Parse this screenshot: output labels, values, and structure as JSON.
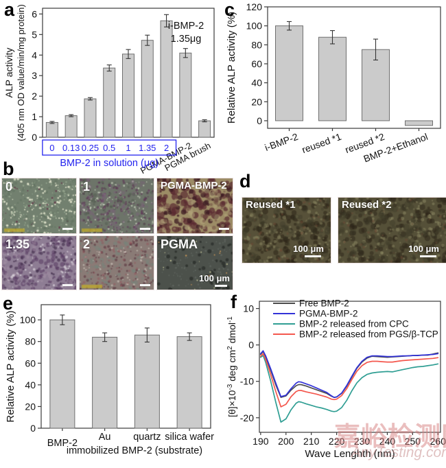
{
  "figure": {
    "labels": {
      "a": "a",
      "b": "b",
      "c": "c",
      "d": "d",
      "e": "e",
      "f": "f"
    }
  },
  "chart_data": [
    {
      "panel": "a",
      "type": "bar",
      "ylabel_lines": [
        "ALP activity",
        "(405 nm OD value/min/mg protein)"
      ],
      "ylim": [
        0,
        6.28
      ],
      "yticks": [
        0,
        1,
        2,
        3,
        4,
        5,
        6
      ],
      "categories": [
        "0",
        "0.13",
        "0.25",
        "0.5",
        "1",
        "1.35",
        "2",
        "PGMA-BMP-2",
        "PGMA brush"
      ],
      "values": [
        0.72,
        1.05,
        1.87,
        3.37,
        4.05,
        4.72,
        5.67,
        4.1,
        0.8
      ],
      "errors": [
        0.05,
        0.05,
        0.06,
        0.15,
        0.22,
        0.25,
        0.3,
        0.22,
        0.05
      ],
      "group_box": {
        "label": "BMP-2 in solution (μg)",
        "first_n": 7,
        "color": "#2323ee"
      },
      "annotation_lines": [
        "i-BMP-2",
        "1.35μg"
      ],
      "bar_fill": "#cbcbcb",
      "bar_stroke": "#6f6f6f"
    },
    {
      "panel": "c",
      "type": "bar",
      "ylabel_lines": [
        "Relative ALP activity (%)"
      ],
      "ylim": [
        -8,
        120
      ],
      "yticks": [
        0,
        20,
        40,
        60,
        80,
        100,
        120
      ],
      "categories": [
        "i-BMP-2",
        "reused *1",
        "reused *2",
        "BMP-2+Ethanol"
      ],
      "values": [
        100,
        88,
        75,
        -5
      ],
      "errors": [
        4.5,
        7,
        11,
        0
      ],
      "bar_fill": "#cbcbcb",
      "bar_stroke": "#6f6f6f"
    },
    {
      "panel": "e",
      "type": "bar",
      "ylabel_lines": [
        "Relative ALP activity (%)"
      ],
      "ylim": [
        0,
        114
      ],
      "yticks": [
        0,
        20,
        40,
        60,
        80,
        100
      ],
      "categories": [
        "BMP-2",
        "Au",
        "quartz",
        "silica wafer"
      ],
      "xlabel2": "immobilized BMP-2 (substrate)",
      "values": [
        100,
        84,
        86,
        84.5
      ],
      "errors": [
        4.5,
        4,
        6.5,
        3.5
      ],
      "bar_fill": "#cbcbcb",
      "bar_stroke": "#6f6f6f"
    },
    {
      "panel": "f",
      "type": "line",
      "xlabel": "Wave Lenghth (nm)",
      "ylabel_segments": [
        {
          "t": "[θ]×10"
        },
        {
          "t": "-3",
          "sup": true
        },
        {
          "t": " deg cm"
        },
        {
          "t": "2",
          "sup": true
        },
        {
          "t": " dmol"
        },
        {
          "t": "-1",
          "sup": true
        }
      ],
      "xlim": [
        189.5,
        261
      ],
      "ylim": [
        -24,
        12
      ],
      "xticks": [
        190,
        200,
        210,
        220,
        230,
        240,
        250,
        260
      ],
      "yticks": [
        10,
        0,
        -10,
        -20
      ],
      "legend_position": "top-inside",
      "x": [
        190,
        191,
        192,
        193,
        194,
        196,
        198,
        200,
        202,
        204,
        205,
        206,
        208,
        210,
        212,
        214,
        216,
        218,
        219,
        220,
        222,
        224,
        226,
        228,
        230,
        232,
        234,
        236,
        238,
        240,
        242,
        244,
        246,
        248,
        250,
        252,
        254,
        256,
        258,
        260
      ],
      "series": [
        {
          "name": "Free BMP-2",
          "color": "#4d4d4d",
          "values": [
            -2.6,
            -1.8,
            -3.2,
            -5.1,
            -7.0,
            -11.0,
            -14.4,
            -14.0,
            -12.4,
            -11.2,
            -10.9,
            -10.9,
            -11.3,
            -11.8,
            -12.3,
            -12.8,
            -13.3,
            -14.1,
            -14.4,
            -14.3,
            -13.3,
            -11.3,
            -8.8,
            -6.4,
            -4.7,
            -3.6,
            -3.1,
            -3.2,
            -3.3,
            -3.4,
            -3.3,
            -3.2,
            -3.1,
            -3.0,
            -2.9,
            -2.85,
            -2.8,
            -2.8,
            -2.5,
            -2.2
          ]
        },
        {
          "name": "PGMA-BMP-2",
          "color": "#3232d8",
          "values": [
            -2.4,
            -1.6,
            -3.0,
            -4.8,
            -6.6,
            -10.5,
            -14.2,
            -13.8,
            -12.0,
            -10.5,
            -10.1,
            -10.2,
            -10.7,
            -11.2,
            -11.8,
            -12.4,
            -13.0,
            -14.0,
            -14.4,
            -14.3,
            -13.2,
            -11.1,
            -8.6,
            -6.2,
            -4.5,
            -3.4,
            -3.0,
            -3.0,
            -3.1,
            -3.2,
            -3.2,
            -3.1,
            -3.0,
            -3.0,
            -2.9,
            -2.9,
            -2.8,
            -2.7,
            -2.6,
            -2.4
          ]
        },
        {
          "name": "BMP-2 released from CPC",
          "color": "#2f9e93",
          "values": [
            -3.4,
            -2.9,
            -4.8,
            -7.4,
            -10.0,
            -15.8,
            -21.2,
            -20.3,
            -17.8,
            -16.0,
            -15.6,
            -15.7,
            -16.2,
            -16.6,
            -17.0,
            -17.3,
            -17.7,
            -18.2,
            -18.3,
            -18.2,
            -17.2,
            -15.2,
            -12.6,
            -10.4,
            -9.0,
            -8.1,
            -7.7,
            -7.5,
            -7.4,
            -7.3,
            -7.4,
            -7.1,
            -6.8,
            -6.5,
            -6.2,
            -6.0,
            -5.9,
            -5.7,
            -5.5,
            -5.2
          ]
        },
        {
          "name": "BMP-2 released from PGS/β-TCP",
          "color": "#f4574d",
          "values": [
            -3.1,
            -2.4,
            -4.0,
            -6.0,
            -8.2,
            -12.8,
            -17.0,
            -16.3,
            -14.2,
            -12.8,
            -12.5,
            -12.5,
            -12.9,
            -13.2,
            -13.5,
            -13.9,
            -14.3,
            -14.9,
            -15.0,
            -14.9,
            -13.9,
            -12.0,
            -9.5,
            -7.2,
            -5.7,
            -4.8,
            -4.5,
            -4.5,
            -4.6,
            -4.7,
            -4.7,
            -4.5,
            -4.3,
            -4.2,
            -4.1,
            -4.0,
            -3.9,
            -3.8,
            -3.7,
            -3.5
          ]
        }
      ]
    }
  ],
  "micrographs": {
    "b": {
      "scale_text": "100 μm",
      "tiles": [
        {
          "label": "0",
          "base": "#72806f",
          "meta": true,
          "speckles": [
            {
              "color": "#e9ead2",
              "count": 150,
              "rmin": 0.7,
              "rmax": 1.8,
              "alpha": 0.85
            },
            {
              "color": "#aebfa4",
              "count": 200,
              "rmin": 0.6,
              "rmax": 1.4,
              "alpha": 0.5
            },
            {
              "color": "#64344a",
              "count": 28,
              "rmin": 0.7,
              "rmax": 1.6,
              "alpha": 0.8
            },
            {
              "color": "#5a6a58",
              "count": 120,
              "rmin": 1.0,
              "rmax": 2.4,
              "alpha": 0.35
            }
          ]
        },
        {
          "label": "1",
          "base": "#6d7469",
          "meta": true,
          "speckles": [
            {
              "color": "#cdd6c2",
              "count": 150,
              "rmin": 0.6,
              "rmax": 1.5,
              "alpha": 0.7
            },
            {
              "color": "#5d3355",
              "count": 180,
              "rmin": 0.8,
              "rmax": 2.0,
              "alpha": 0.6
            },
            {
              "color": "#7c5c7a",
              "count": 90,
              "rmin": 1.5,
              "rmax": 3.2,
              "alpha": 0.35
            },
            {
              "color": "#4c5548",
              "count": 90,
              "rmin": 1.2,
              "rmax": 2.6,
              "alpha": 0.4
            }
          ]
        },
        {
          "label": "PGMA-BMP-2",
          "base": "#9c8c66",
          "meta": false,
          "speckles": [
            {
              "color": "#5a2a30",
              "count": 110,
              "rmin": 2.5,
              "rmax": 6.0,
              "alpha": 0.7
            },
            {
              "color": "#3f1d24",
              "count": 70,
              "rmin": 1.5,
              "rmax": 4.0,
              "alpha": 0.75
            },
            {
              "color": "#b4a67c",
              "count": 60,
              "rmin": 2.0,
              "rmax": 4.5,
              "alpha": 0.5
            },
            {
              "color": "#6e4a40",
              "count": 60,
              "rmin": 1.5,
              "rmax": 3.0,
              "alpha": 0.5
            }
          ]
        },
        {
          "label": "1.35",
          "base": "#8e7d94",
          "meta": false,
          "speckles": [
            {
              "color": "#d9d2da",
              "count": 90,
              "rmin": 0.8,
              "rmax": 2.2,
              "alpha": 0.7
            },
            {
              "color": "#573a60",
              "count": 150,
              "rmin": 1.5,
              "rmax": 3.5,
              "alpha": 0.55
            },
            {
              "color": "#3e2a48",
              "count": 80,
              "rmin": 1.0,
              "rmax": 2.5,
              "alpha": 0.6
            },
            {
              "color": "#a893a8",
              "count": 80,
              "rmin": 1.5,
              "rmax": 3.0,
              "alpha": 0.4
            }
          ]
        },
        {
          "label": "2",
          "base": "#8a7b76",
          "meta": true,
          "speckles": [
            {
              "color": "#74867c",
              "count": 110,
              "rmin": 1.5,
              "rmax": 3.2,
              "alpha": 0.5
            },
            {
              "color": "#5c3640",
              "count": 140,
              "rmin": 0.9,
              "rmax": 2.2,
              "alpha": 0.6
            },
            {
              "color": "#cfc6bd",
              "count": 70,
              "rmin": 0.8,
              "rmax": 1.8,
              "alpha": 0.6
            },
            {
              "color": "#93565c",
              "count": 70,
              "rmin": 1.0,
              "rmax": 2.0,
              "alpha": 0.5
            }
          ]
        },
        {
          "label": "PGMA",
          "base": "#4c514b",
          "meta": false,
          "scale_label": true,
          "speckles": [
            {
              "color": "#666c65",
              "count": 140,
              "rmin": 0.7,
              "rmax": 1.6,
              "alpha": 0.6
            },
            {
              "color": "#2b2e2b",
              "count": 60,
              "rmin": 1.5,
              "rmax": 3.2,
              "alpha": 0.8
            },
            {
              "color": "#c8965a",
              "count": 10,
              "rmin": 0.7,
              "rmax": 1.3,
              "alpha": 0.9
            },
            {
              "color": "#d3d3a2",
              "count": 16,
              "rmin": 0.6,
              "rmax": 1.2,
              "alpha": 0.8
            }
          ]
        }
      ]
    },
    "d": {
      "scale_text": "100 μm",
      "tiles": [
        {
          "label": "Reused *1",
          "base": "#575139",
          "speckles": [
            {
              "color": "#2c2417",
              "count": 170,
              "rmin": 1.8,
              "rmax": 4.5,
              "alpha": 0.55
            },
            {
              "color": "#8e8a64",
              "count": 140,
              "rmin": 1.0,
              "rmax": 2.8,
              "alpha": 0.5
            },
            {
              "color": "#6b4733",
              "count": 50,
              "rmin": 1.0,
              "rmax": 2.2,
              "alpha": 0.5
            },
            {
              "color": "#3c3a28",
              "count": 90,
              "rmin": 2.0,
              "rmax": 5.0,
              "alpha": 0.4
            }
          ]
        },
        {
          "label": "Reused *2",
          "base": "#555038",
          "speckles": [
            {
              "color": "#2c2417",
              "count": 190,
              "rmin": 1.8,
              "rmax": 4.5,
              "alpha": 0.5
            },
            {
              "color": "#908c66",
              "count": 160,
              "rmin": 1.0,
              "rmax": 2.8,
              "alpha": 0.5
            },
            {
              "color": "#6b4733",
              "count": 55,
              "rmin": 1.0,
              "rmax": 2.2,
              "alpha": 0.5
            },
            {
              "color": "#3c3a28",
              "count": 100,
              "rmin": 2.0,
              "rmax": 5.0,
              "alpha": 0.4
            }
          ]
        }
      ]
    }
  },
  "watermark": {
    "line1": "嘉峪检测网",
    "line2": "AnyTesting.com"
  }
}
